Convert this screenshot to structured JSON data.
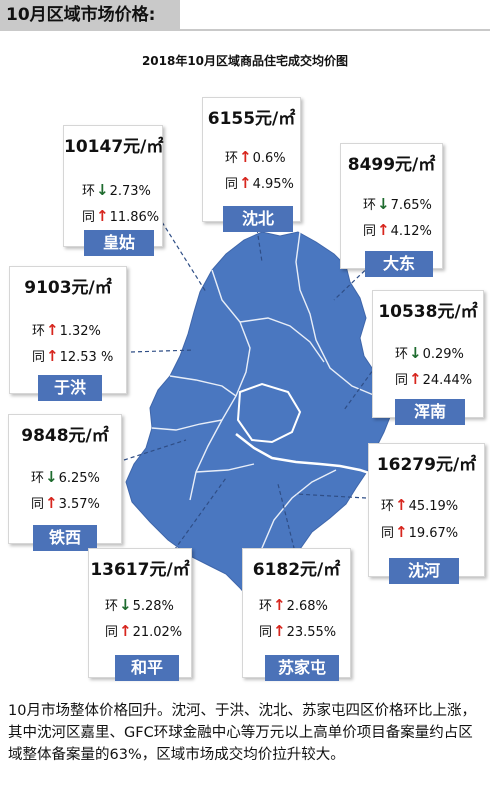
{
  "header": {
    "title": "10月区域市场价格:"
  },
  "chart_title": "2018年10月区域商品住宅成交均价图",
  "labels": {
    "mom": "环",
    "yoy": "同"
  },
  "unit": "元/㎡",
  "colors": {
    "map_fill": "#4a77c0",
    "label_bg": "#4b72b8",
    "up": "#d7261e",
    "down": "#1e6b2e"
  },
  "districts": {
    "huanggu": {
      "name": "皇姑",
      "price": "10147元/㎡",
      "mom": "2.73%",
      "mom_dir": "down",
      "yoy": "11.86%",
      "yoy_dir": "up"
    },
    "shenbei": {
      "name": "沈北",
      "price": "6155元/㎡",
      "mom": "0.6%",
      "mom_dir": "up",
      "yoy": "4.95%",
      "yoy_dir": "up"
    },
    "dadong": {
      "name": "大东",
      "price": "8499元/㎡",
      "mom": "7.65%",
      "mom_dir": "down",
      "yoy": "4.12%",
      "yoy_dir": "up"
    },
    "yuhong": {
      "name": "于洪",
      "price": "9103元/㎡",
      "mom": "1.32%",
      "mom_dir": "up",
      "yoy": "12.53 %",
      "yoy_dir": "up"
    },
    "hunnan": {
      "name": "浑南",
      "price": "10538元/㎡",
      "mom": "0.29%",
      "mom_dir": "down",
      "yoy": "24.44%",
      "yoy_dir": "up"
    },
    "tiexi": {
      "name": "铁西",
      "price": "9848元/㎡",
      "mom": "6.25%",
      "mom_dir": "down",
      "yoy": "3.57%",
      "yoy_dir": "up"
    },
    "shenhe": {
      "name": "沈河",
      "price": "16279元/㎡",
      "mom": "45.19%",
      "mom_dir": "up",
      "yoy": "19.67%",
      "yoy_dir": "up"
    },
    "heping": {
      "name": "和平",
      "price": "13617元/㎡",
      "mom": "5.28%",
      "mom_dir": "down",
      "yoy": "21.02%",
      "yoy_dir": "up"
    },
    "sujiatun": {
      "name": "苏家屯",
      "price": "6182元/㎡",
      "mom": "2.68%",
      "mom_dir": "up",
      "yoy": "23.55%",
      "yoy_dir": "up"
    }
  },
  "summary": "10月市场整体价格回升。沈河、于洪、沈北、苏家屯四区价格环比上涨，其中沈河区嘉里、GFC环球金融中心等万元以上高单价项目备案量约占区域整体备案量的63%，区域市场成交均价拉升较大。"
}
